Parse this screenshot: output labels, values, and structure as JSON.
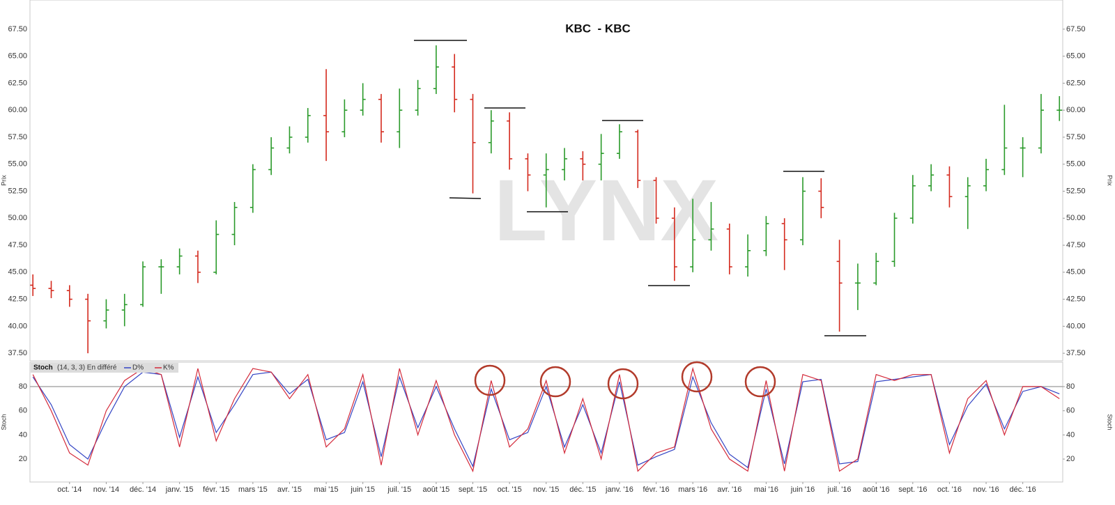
{
  "chart_data": [
    {
      "type": "ohlc",
      "title": "KBC  - KBC",
      "y_label": "Prix",
      "watermark": "LYNX",
      "up_color": "#2a9a2a",
      "down_color": "#d42a1e",
      "x": [
        -1,
        -0.5,
        0,
        0.5,
        1,
        1.5,
        2,
        2.5,
        3,
        3.5,
        4,
        4.5,
        5,
        5.5,
        6,
        6.5,
        7,
        7.5,
        8,
        8.5,
        9,
        9.5,
        10,
        10.5,
        11,
        11.5,
        12,
        12.5,
        13,
        13.5,
        14,
        14.5,
        15,
        15.5,
        16,
        16.5,
        17,
        17.5,
        18,
        18.5,
        19,
        19.5,
        20,
        20.5,
        21,
        21.5,
        22,
        22.5,
        23,
        23.5,
        24,
        24.5,
        25,
        25.5,
        26,
        26.5,
        27
      ],
      "open": [
        43.8,
        43.5,
        43.3,
        42.5,
        40.5,
        41.5,
        42,
        45.5,
        45.5,
        46.5,
        45,
        48.5,
        51,
        54.5,
        56.5,
        57.5,
        59.5,
        58,
        60,
        61,
        58,
        60,
        62,
        64,
        61,
        57,
        59,
        55.5,
        54,
        54.5,
        55.5,
        55,
        56,
        58,
        53.5,
        50,
        45.5,
        48,
        49,
        45.5,
        47,
        49.5,
        48,
        52.5,
        46,
        44,
        44,
        46,
        50,
        53,
        54,
        52,
        53,
        54.5,
        56.5,
        56.5,
        60
      ],
      "high": [
        44.8,
        44.2,
        43.8,
        43.0,
        42.5,
        43.0,
        46.0,
        46.2,
        47.2,
        47.0,
        49.8,
        51.5,
        55.0,
        57.5,
        58.5,
        60.2,
        63.8,
        61.0,
        62.5,
        61.5,
        62.0,
        62.8,
        66.0,
        65.2,
        61.5,
        60.0,
        59.8,
        56.0,
        56.0,
        56.5,
        56.2,
        57.8,
        58.7,
        58.2,
        53.8,
        51.0,
        51.8,
        51.5,
        49.5,
        48.5,
        50.2,
        50.0,
        53.8,
        53.7,
        48.0,
        45.8,
        46.8,
        50.5,
        54.0,
        55.0,
        54.8,
        53.8,
        55.5,
        60.5,
        57.5,
        61.5,
        61.3
      ],
      "low": [
        42.8,
        42.6,
        41.8,
        37.5,
        39.8,
        40.0,
        41.8,
        43.0,
        44.8,
        44.0,
        44.8,
        47.5,
        50.5,
        54.0,
        56.0,
        57.0,
        55.3,
        57.5,
        59.5,
        57.0,
        56.5,
        59.5,
        61.5,
        59.8,
        52.3,
        56.0,
        54.5,
        52.5,
        51.0,
        53.5,
        53.5,
        53.5,
        55.5,
        52.8,
        49.5,
        44.2,
        45.0,
        47.0,
        44.8,
        44.6,
        46.5,
        45.2,
        47.5,
        50.0,
        39.5,
        41.5,
        43.8,
        45.5,
        49.5,
        52.5,
        51.0,
        49.0,
        52.5,
        54.0,
        53.8,
        56.0,
        59.0
      ],
      "close": [
        43.5,
        43.3,
        42.5,
        40.5,
        41.5,
        42,
        45.5,
        45.5,
        46.5,
        45,
        48.5,
        51,
        54.5,
        56.5,
        57.5,
        59.5,
        58,
        60,
        61,
        58,
        60,
        62,
        64,
        61,
        57,
        59,
        55.5,
        54,
        54.5,
        55.5,
        55,
        56,
        58,
        53.5,
        50,
        45.5,
        48,
        49,
        45.5,
        47,
        49.5,
        48,
        52.5,
        51,
        44,
        44,
        46,
        50,
        53,
        54,
        52,
        53,
        54.5,
        56.5,
        56.5,
        60,
        60
      ],
      "xlim": [
        -1.08,
        27.09
      ],
      "ylim": [
        36.8,
        70.2
      ],
      "yticks": [
        {
          "value": 37.5,
          "label": "37.50"
        },
        {
          "value": 40,
          "label": "40.00"
        },
        {
          "value": 42.5,
          "label": "42.50"
        },
        {
          "value": 45,
          "label": "45.00"
        },
        {
          "value": 47.5,
          "label": "47.50"
        },
        {
          "value": 50,
          "label": "50.00"
        },
        {
          "value": 52.5,
          "label": "52.50"
        },
        {
          "value": 55,
          "label": "55.00"
        },
        {
          "value": 57.5,
          "label": "57.50"
        },
        {
          "value": 60,
          "label": "60.00"
        },
        {
          "value": 62.5,
          "label": "62.50"
        },
        {
          "value": 65,
          "label": "65.00"
        },
        {
          "value": 67.5,
          "label": "67.50"
        }
      ]
    },
    {
      "type": "line",
      "y_label": "Stoch",
      "legend_title": "Stoch",
      "legend_params": "(14, 3, 3) En différé",
      "reference_line": 80,
      "x": [
        -1,
        -0.5,
        0,
        0.5,
        1,
        1.5,
        2,
        2.5,
        3,
        3.5,
        4,
        4.5,
        5,
        5.5,
        6,
        6.5,
        7,
        7.5,
        8,
        8.5,
        9,
        9.5,
        10,
        10.5,
        11,
        11.5,
        12,
        12.5,
        13,
        13.5,
        14,
        14.5,
        15,
        15.5,
        16,
        16.5,
        17,
        17.5,
        18,
        18.5,
        19,
        19.5,
        20,
        20.5,
        21,
        21.5,
        22,
        22.5,
        23,
        23.5,
        24,
        24.5,
        25,
        25.5,
        26,
        26.5,
        27
      ],
      "series": [
        {
          "name": "D%",
          "color": "#3344c4",
          "values": [
            88,
            65,
            32,
            20,
            52,
            80,
            92,
            90,
            38,
            88,
            42,
            65,
            90,
            92,
            74,
            86,
            36,
            42,
            84,
            22,
            88,
            46,
            80,
            45,
            14,
            78,
            36,
            42,
            80,
            30,
            65,
            25,
            84,
            15,
            22,
            28,
            88,
            50,
            24,
            13,
            78,
            16,
            84,
            86,
            16,
            18,
            84,
            86,
            88,
            90,
            32,
            64,
            82,
            45,
            76,
            80,
            74
          ]
        },
        {
          "name": "K%",
          "color": "#d42a3a",
          "values": [
            90,
            60,
            25,
            15,
            60,
            85,
            95,
            90,
            30,
            95,
            35,
            70,
            95,
            92,
            70,
            90,
            30,
            45,
            90,
            15,
            95,
            40,
            85,
            40,
            10,
            85,
            30,
            45,
            85,
            25,
            70,
            20,
            90,
            10,
            25,
            30,
            95,
            45,
            20,
            10,
            85,
            10,
            90,
            85,
            10,
            20,
            90,
            85,
            90,
            90,
            25,
            70,
            85,
            40,
            80,
            80,
            70
          ]
        }
      ],
      "xlim": [
        -1.08,
        27.09
      ],
      "ylim": [
        1,
        100.2
      ],
      "yticks": [
        20,
        40,
        60,
        80
      ],
      "xticks": [
        {
          "value": 0,
          "label": "oct. '14"
        },
        {
          "value": 1,
          "label": "nov. '14"
        },
        {
          "value": 2,
          "label": "déc. '14"
        },
        {
          "value": 3,
          "label": "janv. '15"
        },
        {
          "value": 4,
          "label": "févr. '15"
        },
        {
          "value": 5,
          "label": "mars '15"
        },
        {
          "value": 6,
          "label": "avr. '15"
        },
        {
          "value": 7,
          "label": "mai '15"
        },
        {
          "value": 8,
          "label": "juin '15"
        },
        {
          "value": 9,
          "label": "juil. '15"
        },
        {
          "value": 10,
          "label": "août '15"
        },
        {
          "value": 11,
          "label": "sept. '15"
        },
        {
          "value": 12,
          "label": "oct. '15"
        },
        {
          "value": 13,
          "label": "nov. '15"
        },
        {
          "value": 14,
          "label": "déc. '15"
        },
        {
          "value": 15,
          "label": "janv. '16"
        },
        {
          "value": 16,
          "label": "févr. '16"
        },
        {
          "value": 17,
          "label": "mars '16"
        },
        {
          "value": 18,
          "label": "avr. '16"
        },
        {
          "value": 19,
          "label": "mai '16"
        },
        {
          "value": 20,
          "label": "juin '16"
        },
        {
          "value": 21,
          "label": "juil. '16"
        },
        {
          "value": 22,
          "label": "août '16"
        },
        {
          "value": 23,
          "label": "sept. '16"
        },
        {
          "value": 24,
          "label": "oct. '16"
        },
        {
          "value": 25,
          "label": "nov. '16"
        },
        {
          "value": 26,
          "label": "déc. '16"
        }
      ]
    }
  ]
}
